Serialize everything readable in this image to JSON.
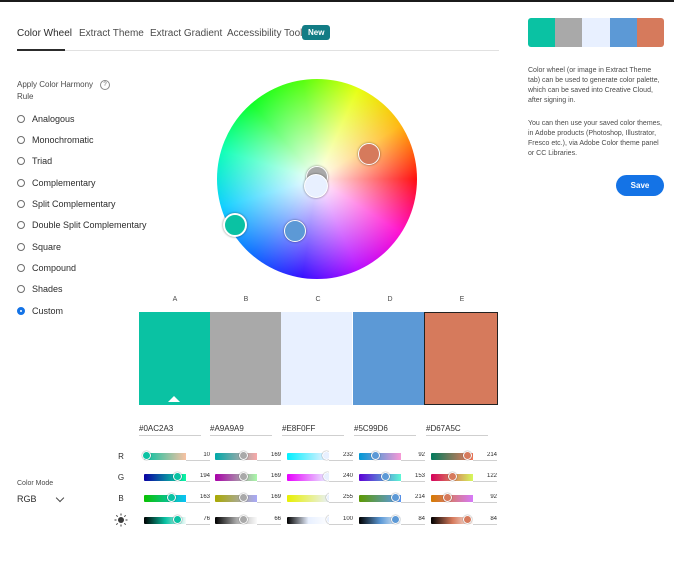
{
  "tabs": [
    {
      "label": "Color Wheel"
    },
    {
      "label": "Extract Theme"
    },
    {
      "label": "Extract Gradient"
    },
    {
      "label": "Accessibility Tools"
    }
  ],
  "new_badge": "New",
  "harmony": {
    "label": "Apply Color Harmony Rule",
    "help_icon": "?",
    "options": [
      "Analogous",
      "Monochromatic",
      "Triad",
      "Complementary",
      "Split Complementary",
      "Double Split Complementary",
      "Square",
      "Compound",
      "Shades",
      "Custom"
    ],
    "selected": "Custom"
  },
  "swatches": [
    {
      "letter": "A",
      "hex": "#0AC2A3",
      "color": "#0AC2A3"
    },
    {
      "letter": "B",
      "hex": "#A9A9A9",
      "color": "#A9A9A9"
    },
    {
      "letter": "C",
      "hex": "#E8F0FF",
      "color": "#E8F0FF"
    },
    {
      "letter": "D",
      "hex": "#5C99D6",
      "color": "#5C99D6"
    },
    {
      "letter": "E",
      "hex": "#D67A5C",
      "color": "#D67A5C"
    }
  ],
  "selected_swatch": "E",
  "channels": [
    {
      "label": "R",
      "values": [
        "10",
        "169",
        "232",
        "92",
        "214"
      ]
    },
    {
      "label": "G",
      "values": [
        "194",
        "169",
        "240",
        "153",
        "122"
      ]
    },
    {
      "label": "B",
      "values": [
        "163",
        "169",
        "255",
        "214",
        "92"
      ]
    },
    {
      "label": "brightness-icon",
      "values": [
        "76",
        "66",
        "100",
        "84",
        "84"
      ]
    }
  ],
  "color_mode": {
    "label": "Color Mode",
    "value": "RGB"
  },
  "info": {
    "p1": "Color wheel (or image in Extract Theme tab) can be used to generate color palette, which can be saved into Creative Cloud, after signing in.",
    "p2": "You can then use your saved color themes, in Adobe products (Photoshop, Illustrator, Fresco etc.), via Adobe Color theme panel or CC Libraries."
  },
  "save_label": "Save"
}
